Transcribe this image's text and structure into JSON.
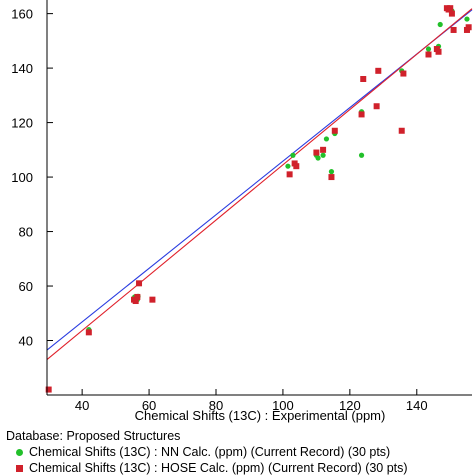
{
  "chart_data": {
    "type": "scatter",
    "xlabel": "Chemical Shifts (13C) : Experimental (ppm)",
    "ylabel": "",
    "xlim": [
      29.5,
      156.5
    ],
    "ylim": [
      20,
      165
    ],
    "xticks": [
      40,
      60,
      80,
      100,
      120,
      140
    ],
    "yticks": [
      40,
      60,
      80,
      100,
      120,
      140,
      160
    ],
    "grid": false,
    "legend_position": "bottom",
    "series": [
      {
        "name": "Chemical Shifts (13C) : NN Calc. (ppm) (Current Record) (30 pts)",
        "color": "#22c02a",
        "marker": "circle",
        "fit_line": {
          "color": "#2a3ce0",
          "x": [
            29.5,
            156.5
          ],
          "y": [
            36.5,
            161.4
          ]
        },
        "points": [
          [
            30.0,
            22.0
          ],
          [
            42.0,
            44.0
          ],
          [
            55.7,
            56.0
          ],
          [
            56.0,
            55.5
          ],
          [
            56.5,
            55.0
          ],
          [
            56.7,
            56.2
          ],
          [
            61.0,
            55.0
          ],
          [
            101.5,
            104.0
          ],
          [
            103.0,
            108.0
          ],
          [
            103.5,
            105.0
          ],
          [
            104.0,
            104.0
          ],
          [
            110.0,
            108.0
          ],
          [
            110.5,
            107.0
          ],
          [
            112.0,
            108.0
          ],
          [
            113.0,
            114.0
          ],
          [
            114.5,
            102.0
          ],
          [
            115.5,
            116.0
          ],
          [
            123.5,
            108.0
          ],
          [
            123.5,
            124.0
          ],
          [
            124.0,
            136.0
          ],
          [
            128.0,
            126.0
          ],
          [
            128.5,
            139.0
          ],
          [
            135.5,
            139.0
          ],
          [
            135.5,
            117.0
          ],
          [
            143.5,
            147.0
          ],
          [
            146.5,
            148.0
          ],
          [
            147.0,
            156.0
          ],
          [
            149.5,
            162.0
          ],
          [
            150.5,
            161.0
          ],
          [
            155.0,
            158.0
          ]
        ]
      },
      {
        "name": "Chemical Shifts (13C) : HOSE Calc. (ppm) (Current Record) (30 pts)",
        "color": "#d0212b",
        "marker": "square",
        "fit_line": {
          "color": "#e0202a",
          "x": [
            29.5,
            156.5
          ],
          "y": [
            33.0,
            161.8
          ]
        },
        "points": [
          [
            30.0,
            22.0
          ],
          [
            42.0,
            43.0
          ],
          [
            55.5,
            55.0
          ],
          [
            56.0,
            54.5
          ],
          [
            56.5,
            56.0
          ],
          [
            57.0,
            61.0
          ],
          [
            61.0,
            55.0
          ],
          [
            102.0,
            101.0
          ],
          [
            103.5,
            105.0
          ],
          [
            104.0,
            104.0
          ],
          [
            110.0,
            109.0
          ],
          [
            112.0,
            110.0
          ],
          [
            114.5,
            100.0
          ],
          [
            115.5,
            117.0
          ],
          [
            123.5,
            123.0
          ],
          [
            124.0,
            136.0
          ],
          [
            128.0,
            126.0
          ],
          [
            128.5,
            139.0
          ],
          [
            135.5,
            117.0
          ],
          [
            136.0,
            138.0
          ],
          [
            143.5,
            145.0
          ],
          [
            146.0,
            147.0
          ],
          [
            146.5,
            146.0
          ],
          [
            149.0,
            162.0
          ],
          [
            149.5,
            161.5
          ],
          [
            150.0,
            162.0
          ],
          [
            150.5,
            160.0
          ],
          [
            151.0,
            154.0
          ],
          [
            155.0,
            154.0
          ],
          [
            155.5,
            155.0
          ]
        ]
      }
    ]
  },
  "legend": {
    "database_label": "Database: Proposed Structures",
    "entries": [
      {
        "label": "Chemical Shifts (13C) : NN Calc. (ppm) (Current Record) (30 pts)"
      },
      {
        "label": "Chemical Shifts (13C) : HOSE Calc. (ppm) (Current Record) (30 pts)"
      }
    ]
  }
}
